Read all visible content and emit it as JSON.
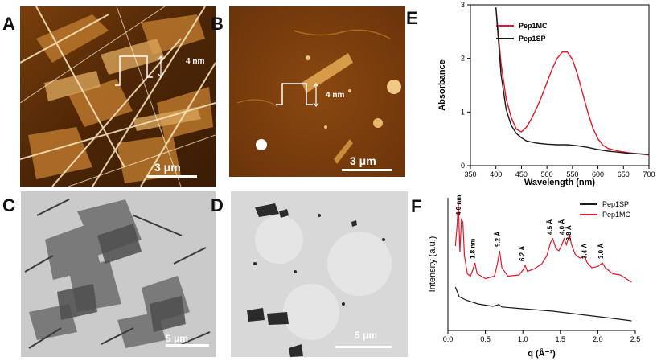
{
  "panels": {
    "A": {
      "letter": "A",
      "height_label": "4 nm",
      "scale_label": "3 μm"
    },
    "B": {
      "letter": "B",
      "height_label": "4 nm",
      "scale_label": "3 μm"
    },
    "C": {
      "letter": "C",
      "scale_label": "5 μm"
    },
    "D": {
      "letter": "D",
      "scale_label": "5 μm"
    },
    "E": {
      "letter": "E"
    },
    "F": {
      "letter": "F"
    }
  },
  "colors": {
    "afm_dark": "#3a1d05",
    "afm_mid": "#8a4b10",
    "afm_bright": "#f3d7a0",
    "sem_bg": "#c9c9c9",
    "tem_bg": "#dcdcdc",
    "pep1mc": "#e0182d",
    "pep1sp": "#1a1a1a"
  },
  "chart_data": [
    {
      "type": "line",
      "panel": "E",
      "xlabel": "Wavelength (nm)",
      "ylabel": "Absorbance",
      "xlim": [
        350,
        700
      ],
      "ylim": [
        0,
        3
      ],
      "x_ticks": [
        350,
        400,
        450,
        500,
        550,
        600,
        650,
        700
      ],
      "y_ticks": [
        0,
        1,
        2,
        3
      ],
      "legend_position": "top-right",
      "series": [
        {
          "name": "Pep1MC",
          "color": "#e0182d",
          "points": [
            [
              400,
              2.95
            ],
            [
              410,
              1.9
            ],
            [
              420,
              1.25
            ],
            [
              430,
              0.9
            ],
            [
              440,
              0.68
            ],
            [
              450,
              0.63
            ],
            [
              460,
              0.72
            ],
            [
              470,
              0.88
            ],
            [
              480,
              1.08
            ],
            [
              490,
              1.3
            ],
            [
              500,
              1.55
            ],
            [
              510,
              1.8
            ],
            [
              520,
              2.0
            ],
            [
              530,
              2.12
            ],
            [
              540,
              2.12
            ],
            [
              550,
              1.98
            ],
            [
              560,
              1.7
            ],
            [
              570,
              1.35
            ],
            [
              580,
              1.0
            ],
            [
              590,
              0.7
            ],
            [
              600,
              0.5
            ],
            [
              610,
              0.38
            ],
            [
              620,
              0.32
            ],
            [
              640,
              0.27
            ],
            [
              660,
              0.24
            ],
            [
              680,
              0.22
            ],
            [
              700,
              0.2
            ]
          ]
        },
        {
          "name": "Pep1SP",
          "color": "#1a1a1a",
          "points": [
            [
              400,
              2.95
            ],
            [
              410,
              1.7
            ],
            [
              420,
              1.05
            ],
            [
              430,
              0.75
            ],
            [
              440,
              0.6
            ],
            [
              450,
              0.52
            ],
            [
              460,
              0.46
            ],
            [
              480,
              0.42
            ],
            [
              500,
              0.4
            ],
            [
              520,
              0.39
            ],
            [
              540,
              0.39
            ],
            [
              560,
              0.37
            ],
            [
              580,
              0.34
            ],
            [
              600,
              0.3
            ],
            [
              620,
              0.27
            ],
            [
              640,
              0.25
            ],
            [
              660,
              0.23
            ],
            [
              680,
              0.22
            ],
            [
              700,
              0.21
            ]
          ]
        }
      ]
    },
    {
      "type": "line",
      "panel": "F",
      "xlabel": "q (Å⁻¹)",
      "ylabel": "Intensity (a.u.)",
      "xlim": [
        0,
        2.5
      ],
      "x_ticks": [
        0.0,
        0.5,
        1.0,
        1.5,
        2.0,
        2.5
      ],
      "legend_position": "top-right",
      "series": [
        {
          "name": "Pep1SP",
          "color": "#1a1a1a",
          "points": [
            [
              0.1,
              0.36
            ],
            [
              0.15,
              0.28
            ],
            [
              0.25,
              0.25
            ],
            [
              0.4,
              0.22
            ],
            [
              0.6,
              0.2
            ],
            [
              0.68,
              0.215
            ],
            [
              0.72,
              0.195
            ],
            [
              1.0,
              0.18
            ],
            [
              1.4,
              0.16
            ],
            [
              1.8,
              0.13
            ],
            [
              2.2,
              0.1
            ],
            [
              2.45,
              0.08
            ]
          ]
        },
        {
          "name": "Pep1MC",
          "color": "#e0182d",
          "points": [
            [
              0.1,
              0.7
            ],
            [
              0.12,
              0.85
            ],
            [
              0.14,
              1.05
            ],
            [
              0.16,
              0.65
            ],
            [
              0.18,
              0.92
            ],
            [
              0.2,
              0.9
            ],
            [
              0.22,
              0.62
            ],
            [
              0.26,
              0.47
            ],
            [
              0.3,
              0.45
            ],
            [
              0.33,
              0.5
            ],
            [
              0.36,
              0.56
            ],
            [
              0.39,
              0.47
            ],
            [
              0.5,
              0.43
            ],
            [
              0.62,
              0.45
            ],
            [
              0.66,
              0.55
            ],
            [
              0.69,
              0.66
            ],
            [
              0.72,
              0.52
            ],
            [
              0.8,
              0.45
            ],
            [
              0.95,
              0.46
            ],
            [
              1.0,
              0.5
            ],
            [
              1.03,
              0.54
            ],
            [
              1.06,
              0.49
            ],
            [
              1.15,
              0.51
            ],
            [
              1.25,
              0.55
            ],
            [
              1.32,
              0.62
            ],
            [
              1.37,
              0.73
            ],
            [
              1.4,
              0.76
            ],
            [
              1.44,
              0.68
            ],
            [
              1.48,
              0.66
            ],
            [
              1.52,
              0.71
            ],
            [
              1.55,
              0.76
            ],
            [
              1.58,
              0.71
            ],
            [
              1.62,
              0.79
            ],
            [
              1.65,
              0.71
            ],
            [
              1.7,
              0.63
            ],
            [
              1.76,
              0.6
            ],
            [
              1.82,
              0.61
            ],
            [
              1.86,
              0.56
            ],
            [
              1.92,
              0.52
            ],
            [
              2.0,
              0.53
            ],
            [
              2.06,
              0.56
            ],
            [
              2.1,
              0.52
            ],
            [
              2.2,
              0.47
            ],
            [
              2.3,
              0.46
            ],
            [
              2.4,
              0.42
            ],
            [
              2.45,
              0.4
            ]
          ]
        }
      ],
      "annotations": [
        {
          "text": "4.0 nm",
          "q": 0.17
        },
        {
          "text": "1.8 nm",
          "q": 0.36
        },
        {
          "text": "9.2 Å",
          "q": 0.69
        },
        {
          "text": "6.2 Å",
          "q": 1.02
        },
        {
          "text": "4.5 Å",
          "q": 1.39
        },
        {
          "text": "4.0 Å",
          "q": 1.55
        },
        {
          "text": "3.8 Å",
          "q": 1.64
        },
        {
          "text": "3.4 Å",
          "q": 1.85
        },
        {
          "text": "3.0 Å",
          "q": 2.07
        }
      ]
    }
  ]
}
